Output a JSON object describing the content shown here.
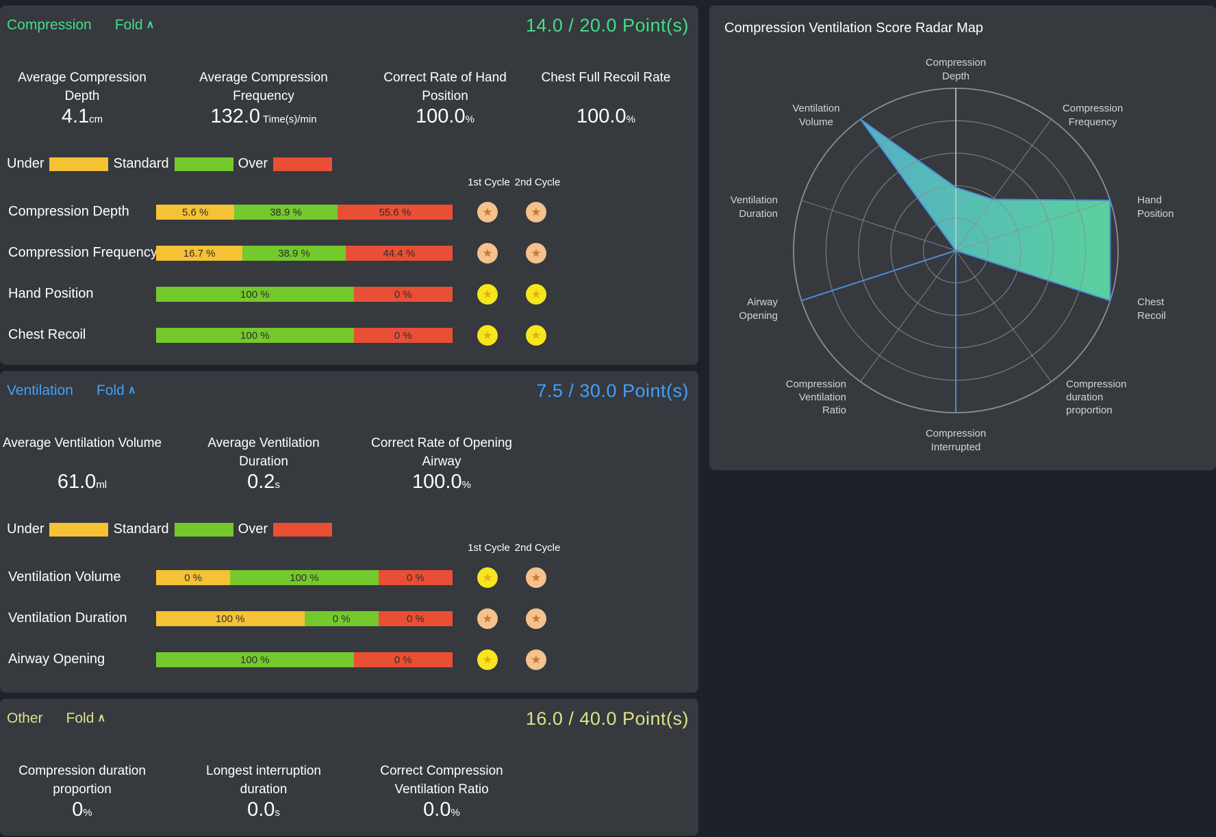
{
  "colors": {
    "page_bg": "#1e2129",
    "panel_bg": "#36393e",
    "accent_compression": "#45dd8c",
    "accent_ventilation": "#41a0ff",
    "accent_other": "#dde28a",
    "bar_under": "#f5c235",
    "bar_standard": "#74c92d",
    "bar_over": "#e94f35",
    "medal_gold_bg": "#f7e51e",
    "medal_gold_star": "#e2b10c",
    "medal_bronze_bg": "#f4c28e",
    "medal_bronze_star": "#c9792a",
    "radar_grid": "#8a8f96",
    "radar_axis_highlight": "#cfd2d6",
    "radar_stroke": "#4c8fd8",
    "radar_fill_start": "#55aed6",
    "radar_fill_end": "#5cd9a2",
    "radar_label": "#d2d4d7"
  },
  "panels": {
    "compression": {
      "title": "Compression",
      "fold_label": "Fold",
      "fold_icon": "∧",
      "score": {
        "earned": "14.0",
        "total": "20.0",
        "unit": "Point(s)"
      },
      "metrics": [
        {
          "label_lines": [
            "Average Compression",
            "Depth"
          ],
          "value": "4.1",
          "unit": "cm"
        },
        {
          "label_lines": [
            "Average Compression",
            "Frequency"
          ],
          "value": "132.0",
          "unit": " Time(s)/min"
        },
        {
          "label_lines": [
            "Correct Rate of Hand",
            "Position"
          ],
          "value": "100.0",
          "unit": "%"
        },
        {
          "label_lines": [
            "Chest Full Recoil Rate"
          ],
          "value": "100.0",
          "unit": "%"
        }
      ],
      "legend": [
        {
          "label": "Under",
          "kind": "under"
        },
        {
          "label": "Standard",
          "kind": "standard"
        },
        {
          "label": "Over",
          "kind": "over"
        }
      ],
      "cycle_headers": [
        "1st Cycle",
        "2nd Cycle"
      ],
      "rows": [
        {
          "label": "Compression Depth",
          "segments": [
            {
              "kind": "under",
              "text": "5.6 %",
              "value": 5.6
            },
            {
              "kind": "standard",
              "text": "38.9 %",
              "value": 38.9
            },
            {
              "kind": "over",
              "text": "55.6 %",
              "value": 55.6
            }
          ],
          "medals": [
            "bronze",
            "bronze"
          ]
        },
        {
          "label": "Compression Frequency",
          "segments": [
            {
              "kind": "under",
              "text": "16.7 %",
              "value": 16.7
            },
            {
              "kind": "standard",
              "text": "38.9 %",
              "value": 38.9
            },
            {
              "kind": "over",
              "text": "44.4 %",
              "value": 44.4
            }
          ],
          "medals": [
            "bronze",
            "bronze"
          ]
        },
        {
          "label": "Hand Position",
          "segments": [
            {
              "kind": "standard",
              "text": "100 %",
              "value": 100
            },
            {
              "kind": "over",
              "text": "0 %",
              "value": 0
            }
          ],
          "medals": [
            "gold",
            "gold"
          ]
        },
        {
          "label": "Chest Recoil",
          "segments": [
            {
              "kind": "standard",
              "text": "100 %",
              "value": 100
            },
            {
              "kind": "over",
              "text": "0 %",
              "value": 0
            }
          ],
          "medals": [
            "gold",
            "gold"
          ]
        }
      ]
    },
    "ventilation": {
      "title": "Ventilation",
      "fold_label": "Fold",
      "fold_icon": "∧",
      "score": {
        "earned": "7.5",
        "total": "30.0",
        "unit": "Point(s)"
      },
      "metrics": [
        {
          "label_lines": [
            "Average Ventilation Volume"
          ],
          "value": "61.0",
          "unit": "ml"
        },
        {
          "label_lines": [
            "Average Ventilation",
            "Duration"
          ],
          "value": "0.2",
          "unit": "s"
        },
        {
          "label_lines": [
            "Correct Rate of Opening",
            "Airway"
          ],
          "value": "100.0",
          "unit": "%"
        }
      ],
      "legend": [
        {
          "label": "Under",
          "kind": "under"
        },
        {
          "label": "Standard",
          "kind": "standard"
        },
        {
          "label": "Over",
          "kind": "over"
        }
      ],
      "cycle_headers": [
        "1st Cycle",
        "2nd Cycle"
      ],
      "rows": [
        {
          "label": "Ventilation Volume",
          "segments": [
            {
              "kind": "under",
              "text": "0 %",
              "value": 0
            },
            {
              "kind": "standard",
              "text": "100 %",
              "value": 100
            },
            {
              "kind": "over",
              "text": "0 %",
              "value": 0
            }
          ],
          "medals": [
            "gold",
            "bronze"
          ]
        },
        {
          "label": "Ventilation Duration",
          "segments": [
            {
              "kind": "under",
              "text": "100 %",
              "value": 100
            },
            {
              "kind": "standard",
              "text": "0 %",
              "value": 0
            },
            {
              "kind": "over",
              "text": "0 %",
              "value": 0
            }
          ],
          "medals": [
            "bronze",
            "bronze"
          ]
        },
        {
          "label": "Airway Opening",
          "segments": [
            {
              "kind": "standard",
              "text": "100 %",
              "value": 100
            },
            {
              "kind": "over",
              "text": "0 %",
              "value": 0
            }
          ],
          "medals": [
            "gold",
            "bronze"
          ]
        }
      ]
    },
    "other": {
      "title": "Other",
      "fold_label": "Fold",
      "fold_icon": "∧",
      "score": {
        "earned": "16.0",
        "total": "40.0",
        "unit": "Point(s)"
      },
      "metrics": [
        {
          "label_lines": [
            "Compression duration",
            "proportion"
          ],
          "value": "0",
          "unit": "%"
        },
        {
          "label_lines": [
            "Longest interruption",
            "duration"
          ],
          "value": "0.0",
          "unit": "s"
        },
        {
          "label_lines": [
            "Correct Compression",
            "Ventilation Ratio"
          ],
          "value": "0.0",
          "unit": "%"
        }
      ],
      "legend": [],
      "cycle_headers": [],
      "rows": []
    }
  },
  "chart_data": {
    "type": "radar",
    "title": "Compression Ventilation Score Radar Map",
    "max": 100,
    "rings": 5,
    "axes": [
      {
        "label": [
          "Compression",
          "Depth"
        ],
        "value": 38.9
      },
      {
        "label": [
          "Compression",
          "Frequency"
        ],
        "value": 38.9
      },
      {
        "label": [
          "Hand",
          "Position"
        ],
        "value": 100
      },
      {
        "label": [
          "Chest",
          "Recoil"
        ],
        "value": 100
      },
      {
        "label": [
          "Compression",
          "duration",
          "proportion"
        ],
        "value": 0
      },
      {
        "label": [
          "Compression",
          "Interrupted"
        ],
        "value": 100
      },
      {
        "label": [
          "Compression",
          "Ventilation",
          "Ratio"
        ],
        "value": 0
      },
      {
        "label": [
          "Airway",
          "Opening"
        ],
        "value": 100
      },
      {
        "label": [
          "Ventilation",
          "Duration"
        ],
        "value": 0
      },
      {
        "label": [
          "Ventilation",
          "Volume"
        ],
        "value": 100
      }
    ]
  }
}
